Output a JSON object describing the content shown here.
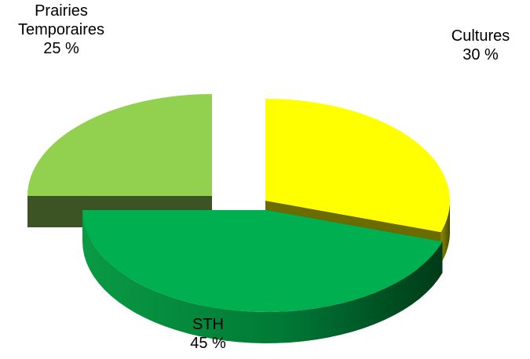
{
  "chart_data": {
    "type": "pie",
    "style": "3d-exploded",
    "legend": "none",
    "slices": [
      {
        "name": "Cultures",
        "value": 30,
        "value_label": "30 %",
        "color": "#ffff00",
        "side_color": "#6b6b00"
      },
      {
        "name": "STH",
        "value": 45,
        "value_label": "45 %",
        "color": "#00b050",
        "side_color": "#005a25"
      },
      {
        "name": "Prairies Temporaires",
        "value": 25,
        "value_label": "25 %",
        "color": "#92d050",
        "side_color": "#3c5424"
      }
    ]
  }
}
